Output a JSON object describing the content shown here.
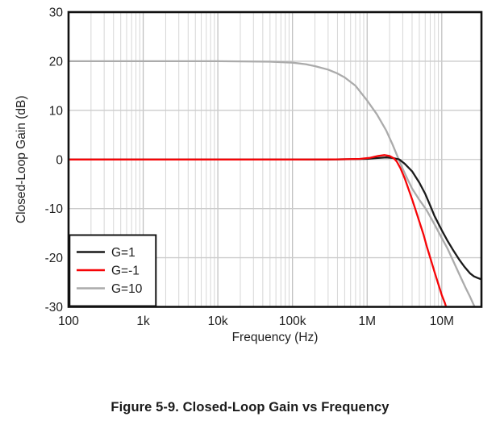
{
  "figure": {
    "caption": "Figure 5-9. Closed-Loop Gain vs Frequency"
  },
  "chart_data": {
    "type": "line",
    "title": "",
    "xlabel": "Frequency (Hz)",
    "ylabel": "Closed-Loop Gain (dB)",
    "x_scale": "log",
    "xlim": [
      100,
      34000000
    ],
    "ylim": [
      -30,
      30
    ],
    "x_ticks": [
      {
        "value": 100,
        "label": "100"
      },
      {
        "value": 1000,
        "label": "1k"
      },
      {
        "value": 10000,
        "label": "10k"
      },
      {
        "value": 100000,
        "label": "100k"
      },
      {
        "value": 1000000,
        "label": "1M"
      },
      {
        "value": 10000000,
        "label": "10M"
      }
    ],
    "y_ticks": [
      30,
      20,
      10,
      0,
      -10,
      -20,
      -30
    ],
    "grid": {
      "horizontal_step_db": 10,
      "vertical": "log-decades-with-minors",
      "on": true
    },
    "legend": {
      "position": "bottom-left",
      "entries": [
        {
          "label": "G=1",
          "color": "#1a1a1a"
        },
        {
          "label": "G=-1",
          "color": "#f60407"
        },
        {
          "label": "G=10",
          "color": "#ababab"
        }
      ]
    },
    "colors": {
      "axis": "#111111",
      "grid_major": "#bdbdbd",
      "grid_minor": "#d6d6d6",
      "grid_horizontal": "#cccccc",
      "tick_text": "#1f1f1f",
      "background": "#ffffff"
    },
    "draw_order": [
      2,
      0,
      1
    ],
    "series": [
      {
        "name": "G=1",
        "color": "#1a1a1a",
        "points": [
          [
            100,
            0
          ],
          [
            1000,
            0
          ],
          [
            10000,
            0
          ],
          [
            100000,
            0
          ],
          [
            300000,
            0
          ],
          [
            600000,
            0.05
          ],
          [
            1000000,
            0.12
          ],
          [
            1400000,
            0.3
          ],
          [
            1800000,
            0.42
          ],
          [
            2200000,
            0.3
          ],
          [
            2700000,
            0
          ],
          [
            3200000,
            -0.9
          ],
          [
            4000000,
            -2.4
          ],
          [
            5000000,
            -4.7
          ],
          [
            6000000,
            -7.0
          ],
          [
            7000000,
            -9.4
          ],
          [
            8000000,
            -11.5
          ],
          [
            10000000,
            -14.4
          ],
          [
            12000000,
            -16.6
          ],
          [
            14000000,
            -18.3
          ],
          [
            17000000,
            -20.3
          ],
          [
            20000000,
            -21.8
          ],
          [
            24000000,
            -23.2
          ],
          [
            27000000,
            -23.8
          ],
          [
            30000000,
            -24.1
          ],
          [
            34000000,
            -24.4
          ]
        ]
      },
      {
        "name": "G=-1",
        "color": "#f60407",
        "points": [
          [
            100,
            0
          ],
          [
            1000,
            0
          ],
          [
            10000,
            0
          ],
          [
            100000,
            0
          ],
          [
            400000,
            0.02
          ],
          [
            800000,
            0.12
          ],
          [
            1100000,
            0.35
          ],
          [
            1400000,
            0.72
          ],
          [
            1700000,
            0.9
          ],
          [
            2000000,
            0.72
          ],
          [
            2300000,
            0.2
          ],
          [
            2500000,
            -0.45
          ],
          [
            2800000,
            -1.8
          ],
          [
            3200000,
            -3.9
          ],
          [
            3600000,
            -6.1
          ],
          [
            4000000,
            -8.1
          ],
          [
            4400000,
            -10.0
          ],
          [
            5000000,
            -12.6
          ],
          [
            5700000,
            -15.3
          ],
          [
            6300000,
            -17.7
          ],
          [
            7000000,
            -20.0
          ],
          [
            8000000,
            -22.9
          ],
          [
            9000000,
            -25.4
          ],
          [
            10000000,
            -27.6
          ],
          [
            11000000,
            -29.2
          ],
          [
            12000000,
            -31.0
          ]
        ]
      },
      {
        "name": "G=10",
        "color": "#ababab",
        "points": [
          [
            100,
            20
          ],
          [
            1000,
            20
          ],
          [
            10000,
            20
          ],
          [
            50000,
            19.9
          ],
          [
            100000,
            19.7
          ],
          [
            150000,
            19.4
          ],
          [
            200000,
            19.0
          ],
          [
            300000,
            18.3
          ],
          [
            400000,
            17.5
          ],
          [
            500000,
            16.7
          ],
          [
            700000,
            15.0
          ],
          [
            1000000,
            12.0
          ],
          [
            1350000,
            9.2
          ],
          [
            1800000,
            5.9
          ],
          [
            2200000,
            3.0
          ],
          [
            2600000,
            0.3
          ],
          [
            3000000,
            -1.9
          ],
          [
            3500000,
            -4.1
          ],
          [
            4000000,
            -5.9
          ],
          [
            5000000,
            -8.2
          ],
          [
            6200000,
            -10.2
          ],
          [
            8000000,
            -13.2
          ],
          [
            10000000,
            -16.0
          ],
          [
            12000000,
            -18.2
          ],
          [
            13400000,
            -19.8
          ],
          [
            17000000,
            -23.2
          ],
          [
            21000000,
            -26.2
          ],
          [
            24000000,
            -28.0
          ],
          [
            27000000,
            -29.7
          ],
          [
            30000000,
            -31.0
          ]
        ]
      }
    ]
  }
}
